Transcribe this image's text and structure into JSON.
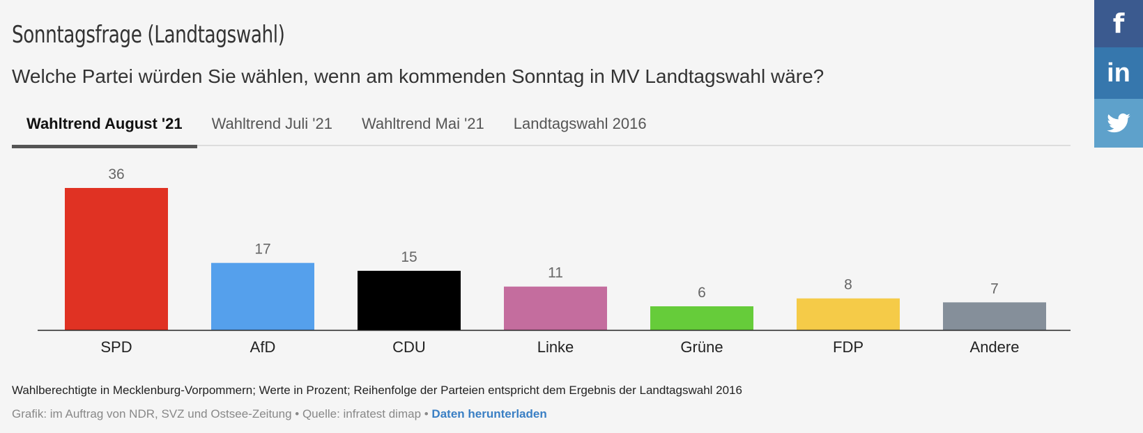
{
  "title": "Sonntagsfrage (Landtagswahl)",
  "subtitle": "Welche Partei würden Sie wählen, wenn am kommenden Sonntag in MV Landtagswahl wäre?",
  "tabs": [
    {
      "label": "Wahltrend August '21",
      "active": true
    },
    {
      "label": "Wahltrend Juli '21"
    },
    {
      "label": "Wahltrend Mai '21"
    },
    {
      "label": "Landtagswahl 2016"
    }
  ],
  "chart_data": {
    "type": "bar",
    "categories": [
      "SPD",
      "AfD",
      "CDU",
      "Linke",
      "Grüne",
      "FDP",
      "Andere"
    ],
    "values": [
      36,
      17,
      15,
      11,
      6,
      8,
      7
    ],
    "colors": [
      "#e03223",
      "#55a0ec",
      "#000000",
      "#c46d9e",
      "#66cc3a",
      "#f5cb48",
      "#858f9a"
    ],
    "ylim": [
      0,
      36
    ],
    "grid": false
  },
  "footer": {
    "note": "Wahlberechtigte in Mecklenburg-Vorpommern; Werte in Prozent; Reihenfolge der Parteien entspricht dem Ergebnis der Landtagswahl 2016",
    "source": "Grafik: im Auftrag von NDR, SVZ und Ostsee-Zeitung • Quelle: infratest dimap • ",
    "download": "Daten herunterladen"
  },
  "social": [
    {
      "icon": "facebook-icon",
      "label": "f",
      "color": "#3b5a8f"
    },
    {
      "icon": "linkedin-icon",
      "label": "in",
      "color": "#3677ad"
    },
    {
      "icon": "twitter-icon",
      "label": "🐦",
      "color": "#5ea1cb"
    }
  ]
}
